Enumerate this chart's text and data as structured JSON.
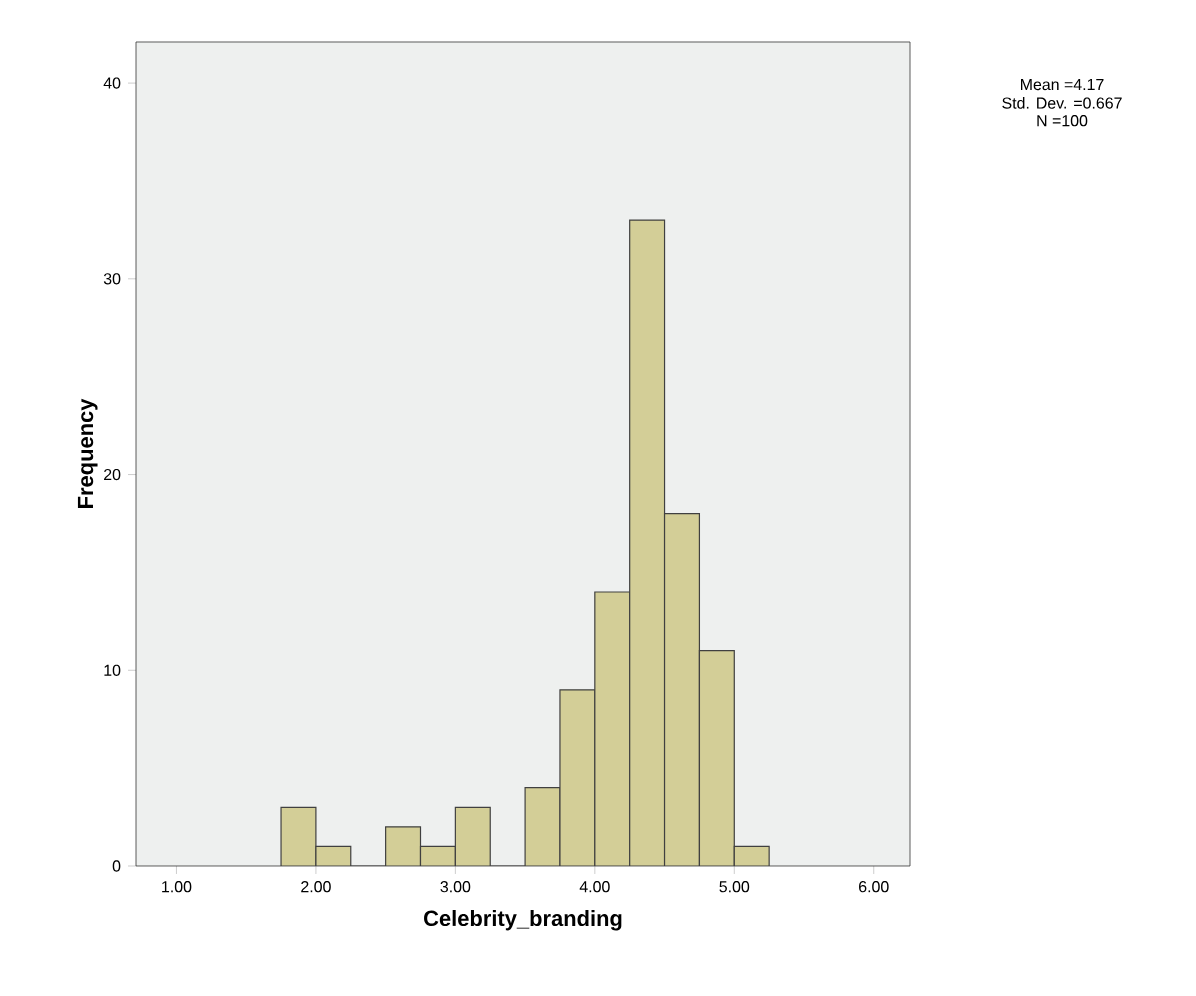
{
  "chart_data": {
    "type": "histogram",
    "xlabel": "Celebrity_branding",
    "ylabel": "Frequency",
    "bins": [
      1.75,
      2.0,
      2.25,
      2.5,
      2.75,
      3.0,
      3.25,
      3.5,
      3.75,
      4.0,
      4.25,
      4.5,
      4.75,
      5.0,
      5.25
    ],
    "values": [
      3,
      1,
      0,
      2,
      1,
      3,
      0,
      4,
      9,
      14,
      33,
      18,
      11,
      1
    ],
    "color": "#d3ce97",
    "xlim": [
      0.71,
      6.26
    ],
    "xticks": [
      {
        "value": 1,
        "label": "1.00"
      },
      {
        "value": 2,
        "label": "2.00"
      },
      {
        "value": 3,
        "label": "3.00"
      },
      {
        "value": 4,
        "label": "4.00"
      },
      {
        "value": 5,
        "label": "5.00"
      },
      {
        "value": 6,
        "label": "6.00"
      }
    ],
    "ylim": [
      0,
      42.1
    ],
    "yticks": [
      0,
      10,
      20,
      30,
      40
    ],
    "grid": false,
    "annotations": [
      "Mean =4.17",
      "Std. Dev. =0.667",
      "N =100"
    ]
  }
}
